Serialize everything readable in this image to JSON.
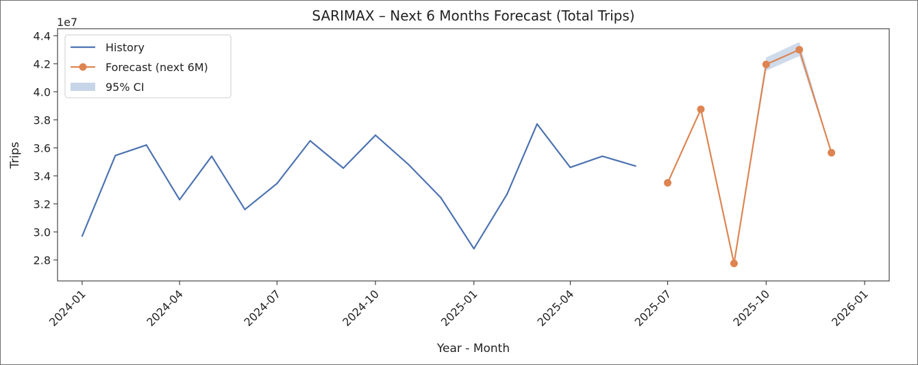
{
  "chart_data": {
    "type": "line",
    "title": "SARIMAX – Next 6 Months Forecast (Total Trips)",
    "xlabel": "Year - Month",
    "ylabel": "Trips",
    "y_offset_label": "1e7",
    "ylim": [
      2.65,
      4.45
    ],
    "xlim": [
      "2023-12-09",
      "2026-01-24"
    ],
    "grid": false,
    "legend_position": "upper-left",
    "x_ticks": [
      "2024-01",
      "2024-04",
      "2024-07",
      "2024-10",
      "2025-01",
      "2025-04",
      "2025-07",
      "2025-10",
      "2026-01"
    ],
    "y_ticks": [
      2.8,
      3.0,
      3.2,
      3.4,
      3.6,
      3.8,
      4.0,
      4.2,
      4.4
    ],
    "legend": [
      {
        "label": "History",
        "kind": "line",
        "color": "#4c72b0"
      },
      {
        "label": "Forecast (next 6M)",
        "kind": "line-marker",
        "color": "#dd8452"
      },
      {
        "label": "95% CI",
        "kind": "band",
        "color": "#c7d5e8"
      }
    ],
    "series": [
      {
        "name": "History",
        "color": "#4c72b0",
        "x": [
          "2024-01-01",
          "2024-02-01",
          "2024-03-01",
          "2024-04-01",
          "2024-05-01",
          "2024-06-01",
          "2024-07-01",
          "2024-08-01",
          "2024-09-01",
          "2024-10-01",
          "2024-11-01",
          "2024-12-01",
          "2025-01-01",
          "2025-02-01",
          "2025-03-01",
          "2025-04-01",
          "2025-05-01",
          "2025-06-01"
        ],
        "values": [
          2.97,
          3.545,
          3.62,
          3.23,
          3.54,
          3.16,
          3.345,
          3.65,
          3.455,
          3.69,
          3.48,
          3.245,
          2.88,
          3.27,
          3.77,
          3.46,
          3.54,
          3.47
        ]
      },
      {
        "name": "Forecast (next 6M)",
        "color": "#dd8452",
        "x": [
          "2025-07-01",
          "2025-08-01",
          "2025-09-01",
          "2025-10-01",
          "2025-11-01",
          "2025-12-01"
        ],
        "values": [
          3.35,
          3.875,
          2.775,
          4.195,
          4.3,
          3.565
        ],
        "ci_lower": [
          3.345,
          3.865,
          2.77,
          4.15,
          4.255,
          3.56
        ],
        "ci_upper": [
          3.355,
          3.885,
          2.78,
          4.245,
          4.355,
          3.57
        ]
      }
    ]
  }
}
